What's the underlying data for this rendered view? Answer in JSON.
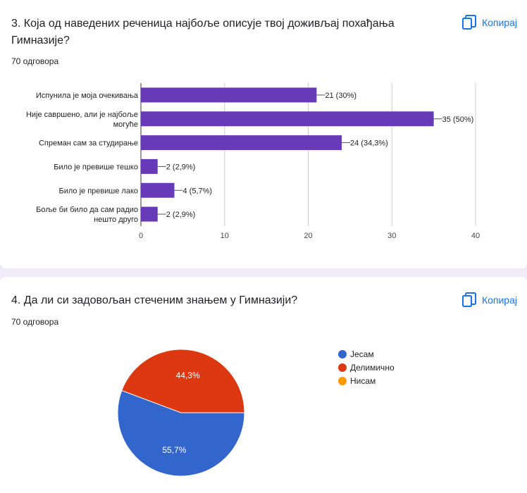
{
  "questions": [
    {
      "title": "3. Која од наведених реченица најбоље описује твој доживљај похађања Гимназије?",
      "responses": "70 одговора",
      "copy_label": "Копирај"
    },
    {
      "title": "4. Да ли си задовољан стеченим знањем у Гимназији?",
      "responses": "70 одговора",
      "copy_label": "Копирај"
    }
  ],
  "icons": {
    "copy": "copy-icon"
  },
  "chart_data": [
    {
      "type": "bar",
      "orientation": "horizontal",
      "categories": [
        [
          "Испунила је моја очекивања"
        ],
        [
          "Није савршено, али је најбоље",
          "могуће"
        ],
        [
          "Спреман сам за студирање"
        ],
        [
          "Било је превише тешко"
        ],
        [
          "Било је превише лако"
        ],
        [
          "Боље би било да сам радио",
          "нешто друго"
        ]
      ],
      "values": [
        21,
        35,
        24,
        2,
        4,
        2
      ],
      "data_labels": [
        "21 (30%)",
        "35 (50%)",
        "24 (34,3%)",
        "2 (2,9%)",
        "4 (5,7%)",
        "2 (2,9%)"
      ],
      "xlim": [
        0,
        40
      ],
      "xticks": [
        "0",
        "10",
        "20",
        "30",
        "40"
      ],
      "grid": true,
      "color": "#673ab7"
    },
    {
      "type": "pie",
      "labels": [
        "Јесам",
        "Делимично",
        "Нисам"
      ],
      "values": [
        55.7,
        44.3,
        0
      ],
      "slice_labels": [
        "55,7%",
        "44,3%",
        ""
      ],
      "colors": [
        "#3366cc",
        "#dc3912",
        "#ff9900"
      ],
      "legend_position": "right"
    }
  ]
}
